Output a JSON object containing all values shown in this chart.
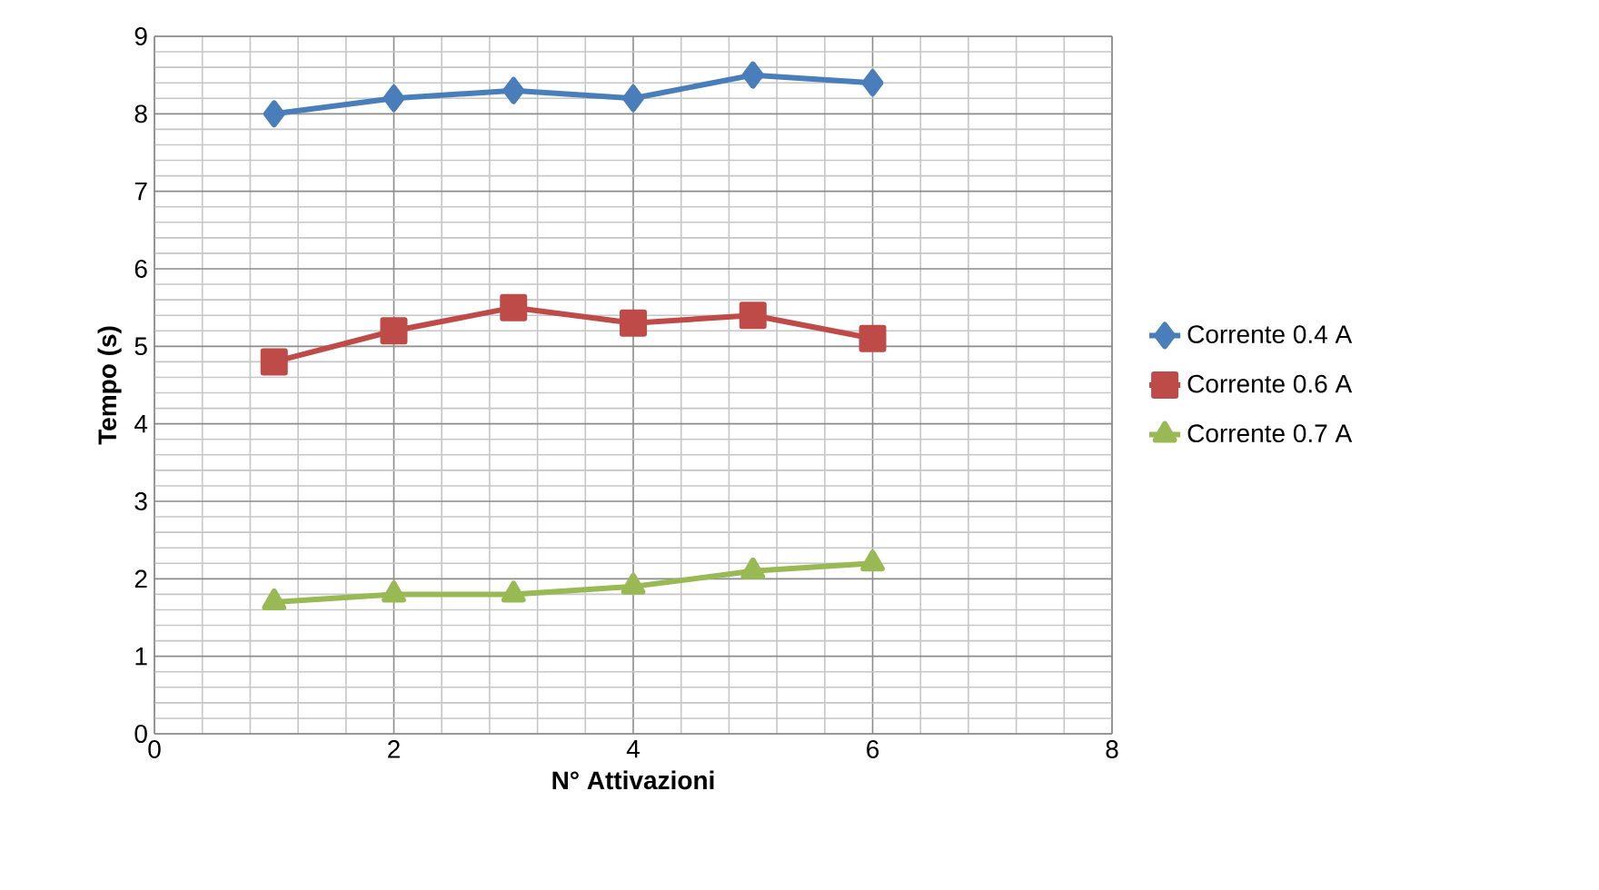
{
  "chart_data": {
    "type": "line",
    "xlabel": "N° Attivazioni",
    "ylabel": "Tempo (s)",
    "x": [
      1,
      2,
      3,
      4,
      5,
      6
    ],
    "series": [
      {
        "name": "Corrente 0.4 A",
        "color": "#4a7ebb",
        "marker": "diamond",
        "values": [
          8.0,
          8.2,
          8.3,
          8.2,
          8.5,
          8.4
        ]
      },
      {
        "name": "Corrente 0.6 A",
        "color": "#be4b48",
        "marker": "square",
        "values": [
          4.8,
          5.2,
          5.5,
          5.3,
          5.4,
          5.1
        ]
      },
      {
        "name": "Corrente 0.7 A",
        "color": "#98b954",
        "marker": "triangle",
        "values": [
          1.7,
          1.8,
          1.8,
          1.9,
          2.1,
          2.2
        ]
      }
    ],
    "xlim": [
      0,
      8
    ],
    "xticks": [
      0,
      2,
      4,
      6,
      8
    ],
    "ylim": [
      0,
      9
    ],
    "yticks": [
      0,
      1,
      2,
      3,
      4,
      5,
      6,
      7,
      8,
      9
    ],
    "grid": true,
    "legend": "right",
    "line_style": "solid"
  }
}
